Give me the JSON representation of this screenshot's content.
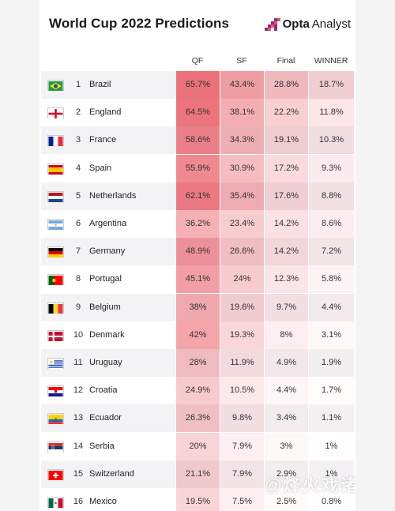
{
  "header": {
    "title": "World Cup 2022 Predictions",
    "logo_brand": "Opta",
    "logo_suffix": "Analyst"
  },
  "columns": [
    "QF",
    "SF",
    "Final",
    "WINNER"
  ],
  "accent_color": "#e8545e",
  "rows": [
    {
      "rank": "1",
      "team": "Brazil",
      "flag": "brazil-flag",
      "qf": "65.7%",
      "sf": "43.4%",
      "final": "28.8%",
      "winner": "18.7%",
      "v": [
        65.7,
        43.4,
        28.8,
        18.7
      ]
    },
    {
      "rank": "2",
      "team": "England",
      "flag": "england-flag",
      "qf": "64.5%",
      "sf": "38.1%",
      "final": "22.2%",
      "winner": "11.8%",
      "v": [
        64.5,
        38.1,
        22.2,
        11.8
      ]
    },
    {
      "rank": "3",
      "team": "France",
      "flag": "france-flag",
      "qf": "58.6%",
      "sf": "34.3%",
      "final": "19.1%",
      "winner": "10.3%",
      "v": [
        58.6,
        34.3,
        19.1,
        10.3
      ]
    },
    {
      "rank": "4",
      "team": "Spain",
      "flag": "spain-flag",
      "qf": "55.9%",
      "sf": "30.9%",
      "final": "17.2%",
      "winner": "9.3%",
      "v": [
        55.9,
        30.9,
        17.2,
        9.3
      ]
    },
    {
      "rank": "5",
      "team": "Netherlands",
      "flag": "netherlands-flag",
      "qf": "62.1%",
      "sf": "35.4%",
      "final": "17.6%",
      "winner": "8.8%",
      "v": [
        62.1,
        35.4,
        17.6,
        8.8
      ]
    },
    {
      "rank": "6",
      "team": "Argentina",
      "flag": "argentina-flag",
      "qf": "36.2%",
      "sf": "23.4%",
      "final": "14.2%",
      "winner": "8.6%",
      "v": [
        36.2,
        23.4,
        14.2,
        8.6
      ]
    },
    {
      "rank": "7",
      "team": "Germany",
      "flag": "germany-flag",
      "qf": "48.9%",
      "sf": "26.6%",
      "final": "14.2%",
      "winner": "7.2%",
      "v": [
        48.9,
        26.6,
        14.2,
        7.2
      ]
    },
    {
      "rank": "8",
      "team": "Portugal",
      "flag": "portugal-flag",
      "qf": "45.1%",
      "sf": "24%",
      "final": "12.3%",
      "winner": "5.8%",
      "v": [
        45.1,
        24,
        12.3,
        5.8
      ]
    },
    {
      "rank": "9",
      "team": "Belgium",
      "flag": "belgium-flag",
      "qf": "38%",
      "sf": "19.6%",
      "final": "9.7%",
      "winner": "4.4%",
      "v": [
        38,
        19.6,
        9.7,
        4.4
      ]
    },
    {
      "rank": "10",
      "team": "Denmark",
      "flag": "denmark-flag",
      "qf": "42%",
      "sf": "19.3%",
      "final": "8%",
      "winner": "3.1%",
      "v": [
        42,
        19.3,
        8,
        3.1
      ]
    },
    {
      "rank": "11",
      "team": "Uruguay",
      "flag": "uruguay-flag",
      "qf": "28%",
      "sf": "11.9%",
      "final": "4.9%",
      "winner": "1.9%",
      "v": [
        28,
        11.9,
        4.9,
        1.9
      ]
    },
    {
      "rank": "12",
      "team": "Croatia",
      "flag": "croatia-flag",
      "qf": "24.9%",
      "sf": "10.5%",
      "final": "4.4%",
      "winner": "1.7%",
      "v": [
        24.9,
        10.5,
        4.4,
        1.7
      ]
    },
    {
      "rank": "13",
      "team": "Ecuador",
      "flag": "ecuador-flag",
      "qf": "26.3%",
      "sf": "9.8%",
      "final": "3.4%",
      "winner": "1.1%",
      "v": [
        26.3,
        9.8,
        3.4,
        1.1
      ]
    },
    {
      "rank": "14",
      "team": "Serbia",
      "flag": "serbia-flag",
      "qf": "20%",
      "sf": "7.9%",
      "final": "3%",
      "winner": "1%",
      "v": [
        20,
        7.9,
        3,
        1
      ]
    },
    {
      "rank": "15",
      "team": "Switzerland",
      "flag": "switzerland-flag",
      "qf": "21.1%",
      "sf": "7.9%",
      "final": "2.9%",
      "winner": "1%",
      "v": [
        21.1,
        7.9,
        2.9,
        1
      ]
    },
    {
      "rank": "16",
      "team": "Mexico",
      "flag": "mexico-flag",
      "qf": "19.5%",
      "sf": "7.5%",
      "final": "2.5%",
      "winner": "0.8%",
      "v": [
        19.5,
        7.5,
        2.5,
        0.8
      ]
    }
  ],
  "watermark": "@烽火戏诸"
}
